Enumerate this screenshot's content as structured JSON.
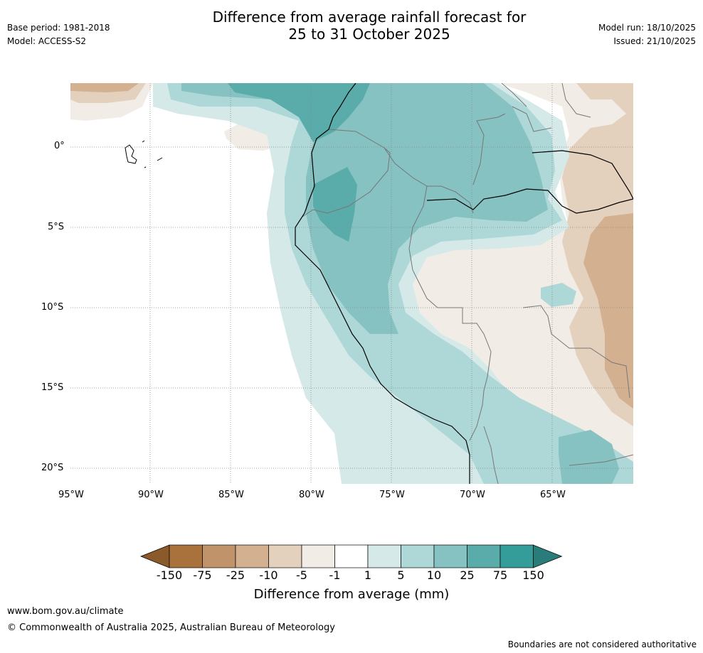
{
  "header": {
    "title_line1": "Difference from average rainfall forecast for",
    "title_line2": "25 to 31 October 2025",
    "base_period": "Base period: 1981-2018",
    "model": "Model: ACCESS-S2",
    "model_run": "Model run: 18/10/2025",
    "issued": "Issued: 21/10/2025"
  },
  "axes": {
    "x_ticks": [
      "95°W",
      "90°W",
      "85°W",
      "80°W",
      "75°W",
      "70°W",
      "65°W"
    ],
    "y_ticks": [
      "0°",
      "5°S",
      "10°S",
      "15°S",
      "20°S"
    ]
  },
  "colorbar": {
    "labels": [
      "-150",
      "-75",
      "-25",
      "-10",
      "-5",
      "-1",
      "1",
      "5",
      "10",
      "25",
      "75",
      "150"
    ],
    "colors": [
      "#8b5a2b",
      "#a9723d",
      "#c1936a",
      "#d3b08f",
      "#e3d0bd",
      "#f1ece6",
      "#ffffff",
      "#d5e9e8",
      "#aed8d7",
      "#85c2c1",
      "#5aacaa",
      "#349c99",
      "#2a7c7a"
    ],
    "title": "Difference from average (mm)"
  },
  "footer": {
    "website": "www.bom.gov.au/climate",
    "copyright": "© Commonwealth of Australia 2025, Australian Bureau of Meteorology",
    "disclaimer": "Boundaries are not considered authoritative"
  }
}
